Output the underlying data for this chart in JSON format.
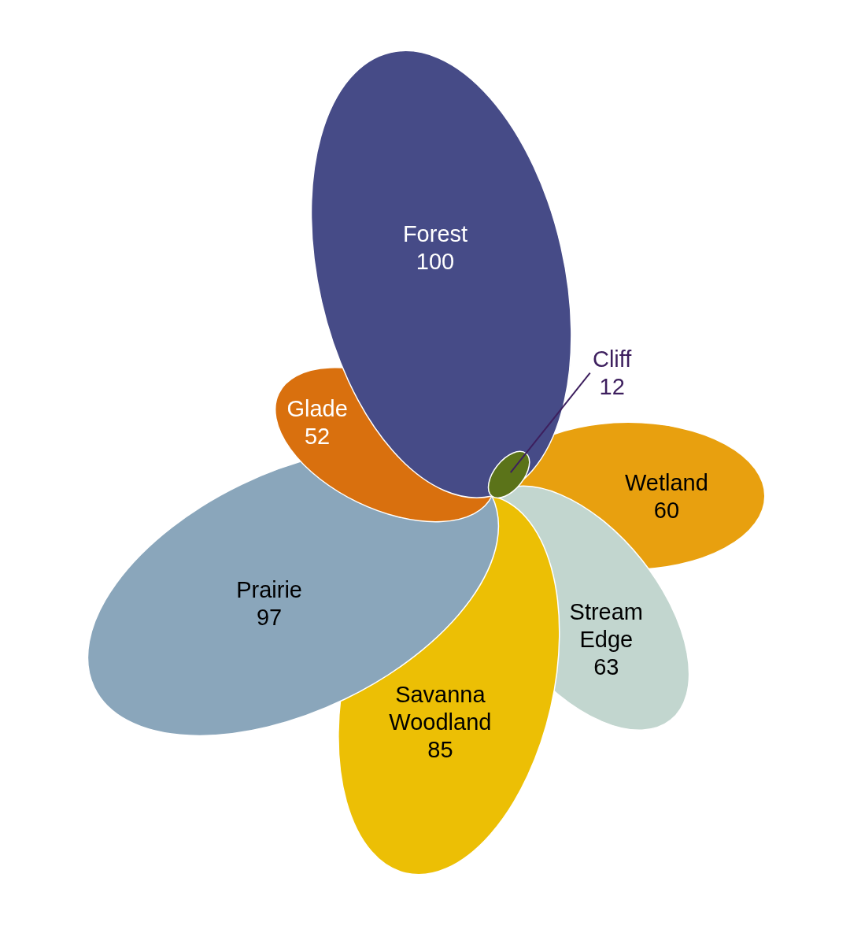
{
  "chart_data": {
    "type": "other",
    "categories": [
      "Wetland",
      "Stream Edge",
      "Savanna Woodland",
      "Prairie",
      "Glade",
      "Forest",
      "Cliff"
    ],
    "values": [
      60,
      63,
      85,
      97,
      52,
      100,
      12
    ],
    "colors": [
      "#e8a00f",
      "#c2d6cf",
      "#ecbf05",
      "#8aa6bb",
      "#d9700e",
      "#464b87",
      "#5b7319"
    ],
    "data_labels": true
  }
}
